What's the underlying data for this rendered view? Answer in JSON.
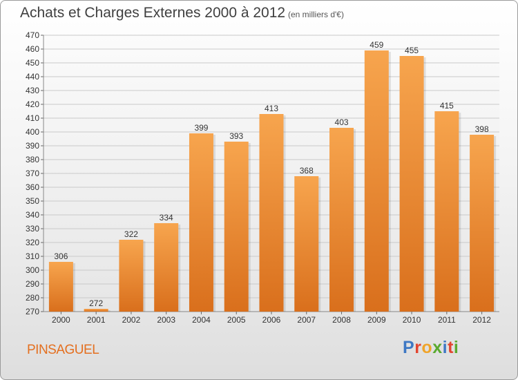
{
  "header": {
    "title": "Achats et Charges Externes 2000 à 2012",
    "subtitle": "(en milliers d'€)"
  },
  "footer": {
    "commune": "PINSAGUEL",
    "logo_text": "Proxiti"
  },
  "colors": {
    "bar_top": "#f7a54e",
    "bar_bottom": "#d96f1c",
    "commune_text": "#e46f1f",
    "logo_letters": [
      "#3e78c4",
      "#e3442f",
      "#f0a42a",
      "#5aaa2f",
      "#3e78c4",
      "#e3442f",
      "#5aaa2f"
    ]
  },
  "chart_data": {
    "type": "bar",
    "title": "Achats et Charges Externes 2000 à 2012",
    "subtitle": "(en milliers d'€)",
    "categories": [
      "2000",
      "2001",
      "2002",
      "2003",
      "2004",
      "2005",
      "2006",
      "2007",
      "2008",
      "2009",
      "2010",
      "2011",
      "2012"
    ],
    "values": [
      306,
      272,
      322,
      334,
      399,
      393,
      413,
      368,
      403,
      459,
      455,
      415,
      398
    ],
    "ylim": [
      270,
      470
    ],
    "ytick_step": 10,
    "grid": true,
    "xlabel": "",
    "ylabel": ""
  }
}
